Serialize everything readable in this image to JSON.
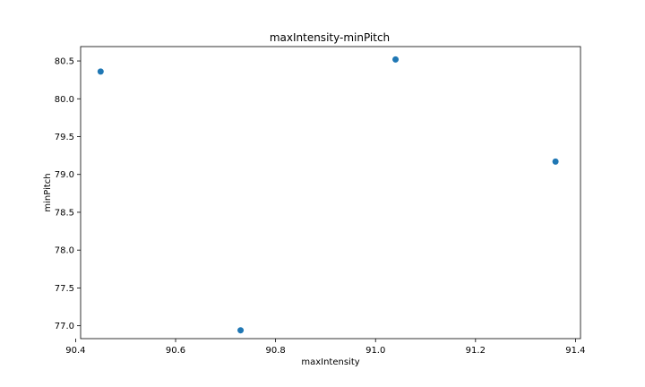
{
  "chart_data": {
    "type": "scatter",
    "title": "maxIntensity-minPitch",
    "xlabel": "maxIntensity",
    "ylabel": "minPitch",
    "xlim": [
      90.41,
      91.41
    ],
    "ylim": [
      76.83,
      80.69
    ],
    "xticks": [
      90.4,
      90.6,
      90.8,
      91.0,
      91.2,
      91.4
    ],
    "xtick_labels": [
      "90.4",
      "90.6",
      "90.8",
      "91.0",
      "91.2",
      "91.4"
    ],
    "yticks": [
      77.0,
      77.5,
      78.0,
      78.5,
      79.0,
      79.5,
      80.0,
      80.5
    ],
    "ytick_labels": [
      "77.0",
      "77.5",
      "78.0",
      "78.5",
      "79.0",
      "79.5",
      "80.0",
      "80.5"
    ],
    "grid": false,
    "marker_color": "#1f77b4",
    "points": [
      {
        "x": 90.45,
        "y": 80.36
      },
      {
        "x": 90.73,
        "y": 76.94
      },
      {
        "x": 91.04,
        "y": 80.52
      },
      {
        "x": 91.36,
        "y": 79.17
      }
    ]
  }
}
